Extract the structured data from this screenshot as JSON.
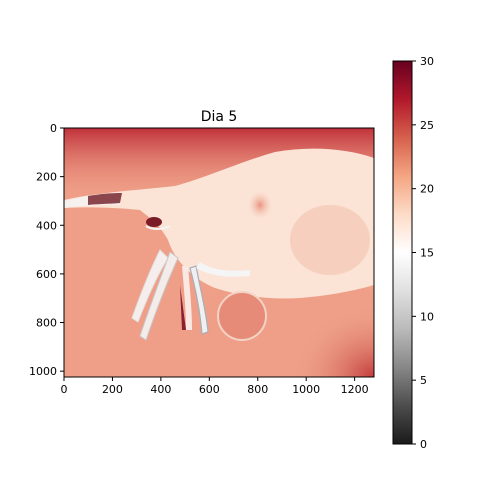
{
  "chart_data": {
    "type": "heatmap",
    "title": "Dia 5",
    "xlabel": "",
    "ylabel": "",
    "xlim": [
      0,
      1280
    ],
    "ylim": [
      1024,
      0
    ],
    "x_ticks": [
      0,
      200,
      400,
      600,
      800,
      1000,
      1200
    ],
    "x_tick_labels": [
      "0",
      "200",
      "400",
      "600",
      "800",
      "1000",
      "1200"
    ],
    "y_ticks": [
      0,
      200,
      400,
      600,
      800,
      1000
    ],
    "y_tick_labels": [
      "0",
      "200",
      "400",
      "600",
      "800",
      "1000"
    ],
    "colormap": "RdGy_r",
    "colorbar": {
      "range": [
        0,
        30
      ],
      "ticks": [
        0,
        5,
        10,
        15,
        20,
        25,
        30
      ],
      "tick_labels": [
        "0",
        "5",
        "10",
        "15",
        "20",
        "25",
        "30"
      ],
      "stops": [
        "#1a1a1a",
        "#4d4d4d",
        "#878787",
        "#bababa",
        "#e0e0e0",
        "#ffffff",
        "#fddbc7",
        "#f4a582",
        "#d6604d",
        "#b2182b",
        "#67001f"
      ]
    },
    "description_values": {
      "background_level": 21,
      "body_level": 18,
      "hot_corner_level": 27,
      "cold_edge_level": 10
    }
  }
}
